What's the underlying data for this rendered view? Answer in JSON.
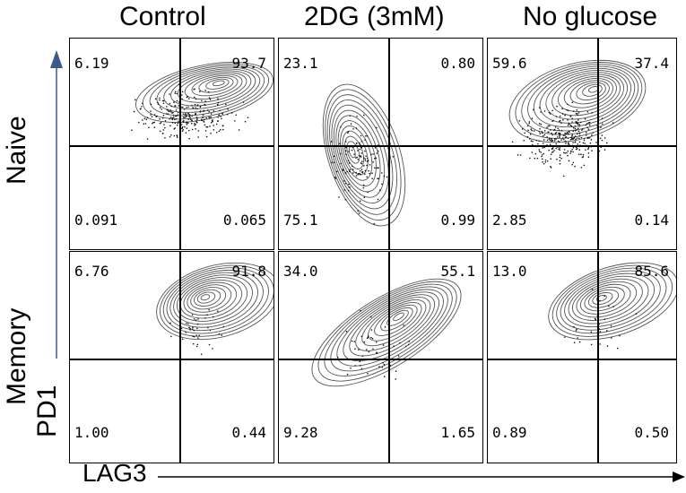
{
  "columns": [
    "Control",
    "2DG (3mM)",
    "No glucose"
  ],
  "rows": [
    "Naive",
    "Memory"
  ],
  "axes": {
    "x_label": "LAG3",
    "y_label": "PD1"
  },
  "panels": [
    {
      "row": "Naive",
      "column": "Control",
      "ul": "6.19",
      "ur": "93.7",
      "ll": "0.091",
      "lr": "0.065"
    },
    {
      "row": "Naive",
      "column": "2DG (3mM)",
      "ul": "23.1",
      "ur": "0.80",
      "ll": "75.1",
      "lr": "0.99"
    },
    {
      "row": "Naive",
      "column": "No glucose",
      "ul": "59.6",
      "ur": "37.4",
      "ll": "2.85",
      "lr": "0.14"
    },
    {
      "row": "Memory",
      "column": "Control",
      "ul": "6.76",
      "ur": "91.8",
      "ll": "1.00",
      "lr": "0.44"
    },
    {
      "row": "Memory",
      "column": "2DG (3mM)",
      "ul": "34.0",
      "ur": "55.1",
      "ll": "9.28",
      "lr": "1.65"
    },
    {
      "row": "Memory",
      "column": "No glucose",
      "ul": "13.0",
      "ur": "85.6",
      "ll": "0.89",
      "lr": "0.50"
    }
  ],
  "colors": {
    "contour": "#555555",
    "dots": "#111111",
    "lines": "#000000",
    "arrow": "#3a5a8a"
  }
}
